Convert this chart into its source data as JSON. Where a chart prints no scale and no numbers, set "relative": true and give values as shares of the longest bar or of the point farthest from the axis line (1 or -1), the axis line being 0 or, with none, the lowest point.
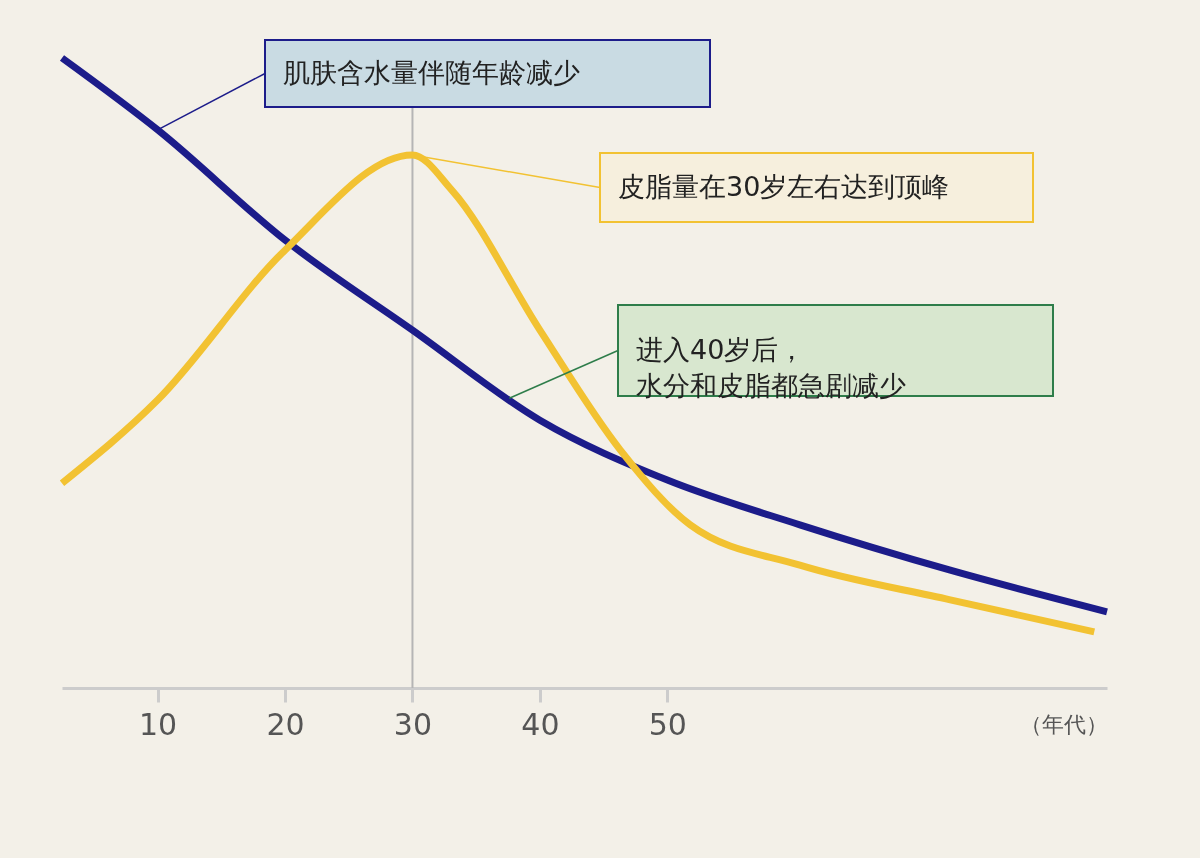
{
  "chart_data": {
    "type": "line",
    "relative": true,
    "xlabel": "（年代）",
    "xlim": [
      2.5,
      84.5
    ],
    "xticks": [
      10,
      20,
      30,
      40,
      50
    ],
    "grid": false,
    "series": [
      {
        "color": "#1c1c8a",
        "x": [
          2.5,
          10,
          20,
          30,
          40,
          50,
          60.4,
          72.2,
          84.5
        ],
        "values": [
          1,
          0.886,
          0.711,
          0.568,
          0.425,
          0.33,
          0.259,
          0.187,
          0.121
        ]
      },
      {
        "color": "#f2c232",
        "x": [
          2.5,
          10,
          20,
          30,
          33.1,
          40,
          46.3,
          51.8,
          60.4,
          72.2,
          83.5
        ],
        "values": [
          0.325,
          0.457,
          0.695,
          0.846,
          0.79,
          0.568,
          0.378,
          0.259,
          0.195,
          0.14,
          0.089
        ]
      }
    ],
    "ref_lines": [
      {
        "axis": "x",
        "value": 30,
        "color": "#b5b5b5"
      }
    ],
    "annotations": [
      {
        "text": "肌肤含水量伴随年龄减少",
        "x": 10,
        "y": 0.886
      },
      {
        "text": "皮脂量在30岁左右达到顶峰",
        "x": 30,
        "y": 0.846
      },
      {
        "text": "进入40岁后，水分和皮脂都急剧减少",
        "x": 37.6,
        "y": 0.46
      }
    ]
  }
}
